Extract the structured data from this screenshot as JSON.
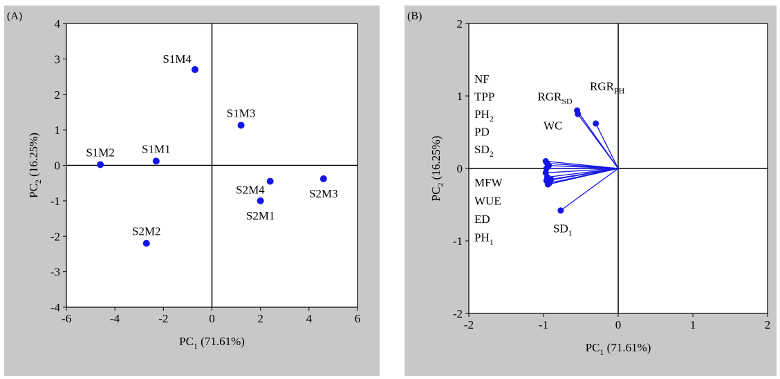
{
  "colors": {
    "panel_bg": "#c8c8c8",
    "plot_bg": "#ffffff",
    "marker": "#1414e6",
    "axis": "#000000"
  },
  "chart_data": [
    {
      "panel_label": "(A)",
      "type": "scatter",
      "xlabel": {
        "main": "PC",
        "sub": "1",
        "rest": " (71.61%)"
      },
      "ylabel": {
        "main": "PC",
        "sub": "2",
        "rest": " (16.25%)"
      },
      "xlim": [
        -6,
        6
      ],
      "ylim": [
        -4,
        4
      ],
      "xticks": [
        "-6",
        "-4",
        "-2",
        "0",
        "2",
        "4",
        "6"
      ],
      "yticks": [
        "-4",
        "-3",
        "-2",
        "-1",
        "0",
        "1",
        "2",
        "3",
        "4"
      ],
      "points": [
        {
          "label": "S1M4",
          "x": -0.7,
          "y": 2.7,
          "label_pos": "left-above"
        },
        {
          "label": "S1M3",
          "x": 1.2,
          "y": 1.13,
          "label_pos": "above"
        },
        {
          "label": "S1M2",
          "x": -4.6,
          "y": 0.02,
          "label_pos": "above"
        },
        {
          "label": "S1M1",
          "x": -2.3,
          "y": 0.12,
          "label_pos": "above"
        },
        {
          "label": "S2M4",
          "x": 2.4,
          "y": -0.45,
          "label_pos": "left"
        },
        {
          "label": "S2M1",
          "x": 2.0,
          "y": -1.0,
          "label_pos": "below"
        },
        {
          "label": "S2M3",
          "x": 4.6,
          "y": -0.38,
          "label_pos": "below"
        },
        {
          "label": "S2M2",
          "x": -2.7,
          "y": -2.2,
          "label_pos": "above"
        }
      ]
    },
    {
      "panel_label": "(B)",
      "type": "scatter",
      "subtype": "loading-vectors",
      "xlabel": {
        "main": "PC",
        "sub": "1",
        "rest": " (71.61%)"
      },
      "ylabel": {
        "main": "PC",
        "sub": "2",
        "rest": " (16.25%)"
      },
      "xlim": [
        -2,
        2
      ],
      "ylim": [
        -2,
        2
      ],
      "xticks": [
        "-2",
        "-1",
        "0",
        "1",
        "2"
      ],
      "yticks": [
        "-2",
        "-1",
        "0",
        "1",
        "2"
      ],
      "vectors": [
        {
          "x": -0.55,
          "y": 0.8
        },
        {
          "x": -0.54,
          "y": 0.75
        },
        {
          "x": -0.3,
          "y": 0.62
        },
        {
          "x": -0.77,
          "y": -0.58
        },
        {
          "x": -0.97,
          "y": 0.1
        },
        {
          "x": -0.95,
          "y": 0.07
        },
        {
          "x": -0.93,
          "y": 0.04
        },
        {
          "x": -0.96,
          "y": 0.0
        },
        {
          "x": -0.97,
          "y": -0.06
        },
        {
          "x": -0.95,
          "y": -0.12
        },
        {
          "x": -0.96,
          "y": -0.17
        },
        {
          "x": -0.94,
          "y": -0.22
        },
        {
          "x": -0.9,
          "y": -0.15
        },
        {
          "x": -0.92,
          "y": -0.2
        }
      ],
      "vector_labels": [
        {
          "main": "RGR",
          "sub": "PH",
          "x": -0.38,
          "y": 1.08
        },
        {
          "main": "RGR",
          "sub": "SD",
          "x": -1.08,
          "y": 0.94
        },
        {
          "main": "WC",
          "sub": "",
          "x": -1.0,
          "y": 0.54
        },
        {
          "main": "SD",
          "sub": "1",
          "x": -0.87,
          "y": -0.88
        }
      ],
      "variable_lists": {
        "upper": [
          {
            "main": "NF",
            "sub": ""
          },
          {
            "main": "TPP",
            "sub": ""
          },
          {
            "main": "PH",
            "sub": "2"
          },
          {
            "main": "PD",
            "sub": ""
          },
          {
            "main": "SD",
            "sub": "2"
          }
        ],
        "lower": [
          {
            "main": "MFW",
            "sub": ""
          },
          {
            "main": "WUE",
            "sub": ""
          },
          {
            "main": "ED",
            "sub": ""
          },
          {
            "main": "PH",
            "sub": "1"
          }
        ]
      }
    }
  ]
}
